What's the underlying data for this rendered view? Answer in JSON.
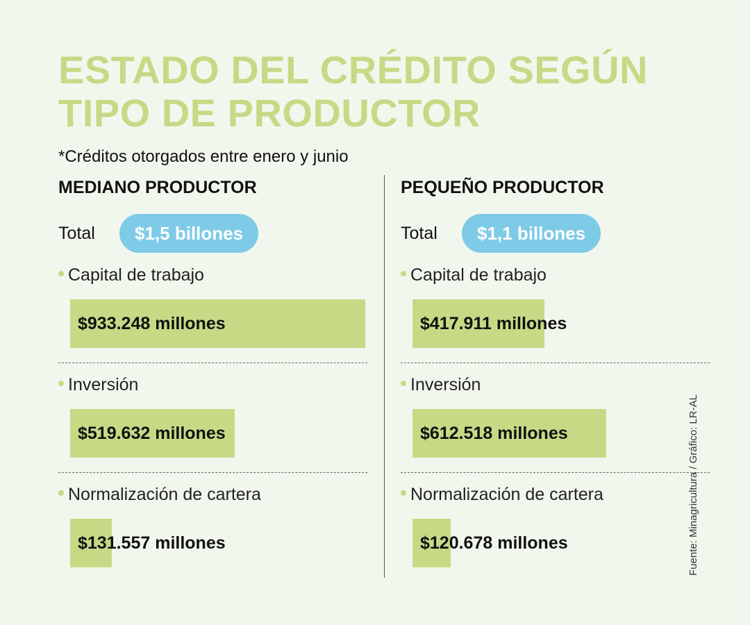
{
  "title": "ESTADO DEL CRÉDITO SEGÚN TIPO DE PRODUCTOR",
  "subtitle": "*Créditos otorgados entre enero y junio",
  "source": "Fuente: Minagricultura  / Gráfico: LR-AL",
  "colors": {
    "background": "#f2f7ee",
    "title": "#c6da86",
    "bar": "#c6da86",
    "pill": "#7ecbe7"
  },
  "total_label": "Total",
  "columns": [
    {
      "title": "MEDIANO PRODUCTOR",
      "total": "$1,5 billones",
      "items": [
        {
          "label": "Capital de trabajo",
          "value_text": "$933.248 millones"
        },
        {
          "label": "Inversión",
          "value_text": "$519.632 millones"
        },
        {
          "label": "Normalización de cartera",
          "value_text": "$131.557 millones"
        }
      ]
    },
    {
      "title": "PEQUEÑO PRODUCTOR",
      "total": "$1,1 billones",
      "items": [
        {
          "label": "Capital de trabajo",
          "value_text": "$417.911 millones"
        },
        {
          "label": "Inversión",
          "value_text": "$612.518 millones"
        },
        {
          "label": "Normalización de cartera",
          "value_text": "$120.678 millones"
        }
      ]
    }
  ],
  "chart_data": {
    "type": "bar",
    "title": "ESTADO DEL CRÉDITO SEGÚN TIPO DE PRODUCTOR",
    "subtitle": "*Créditos otorgados entre enero y junio",
    "categories": [
      "Capital de trabajo",
      "Inversión",
      "Normalización de cartera"
    ],
    "series": [
      {
        "name": "MEDIANO PRODUCTOR",
        "values": [
          933248,
          519632,
          131557
        ]
      },
      {
        "name": "PEQUEÑO PRODUCTOR",
        "values": [
          417911,
          612518,
          120678
        ]
      }
    ],
    "ylim": [
      0,
      933248
    ]
  }
}
